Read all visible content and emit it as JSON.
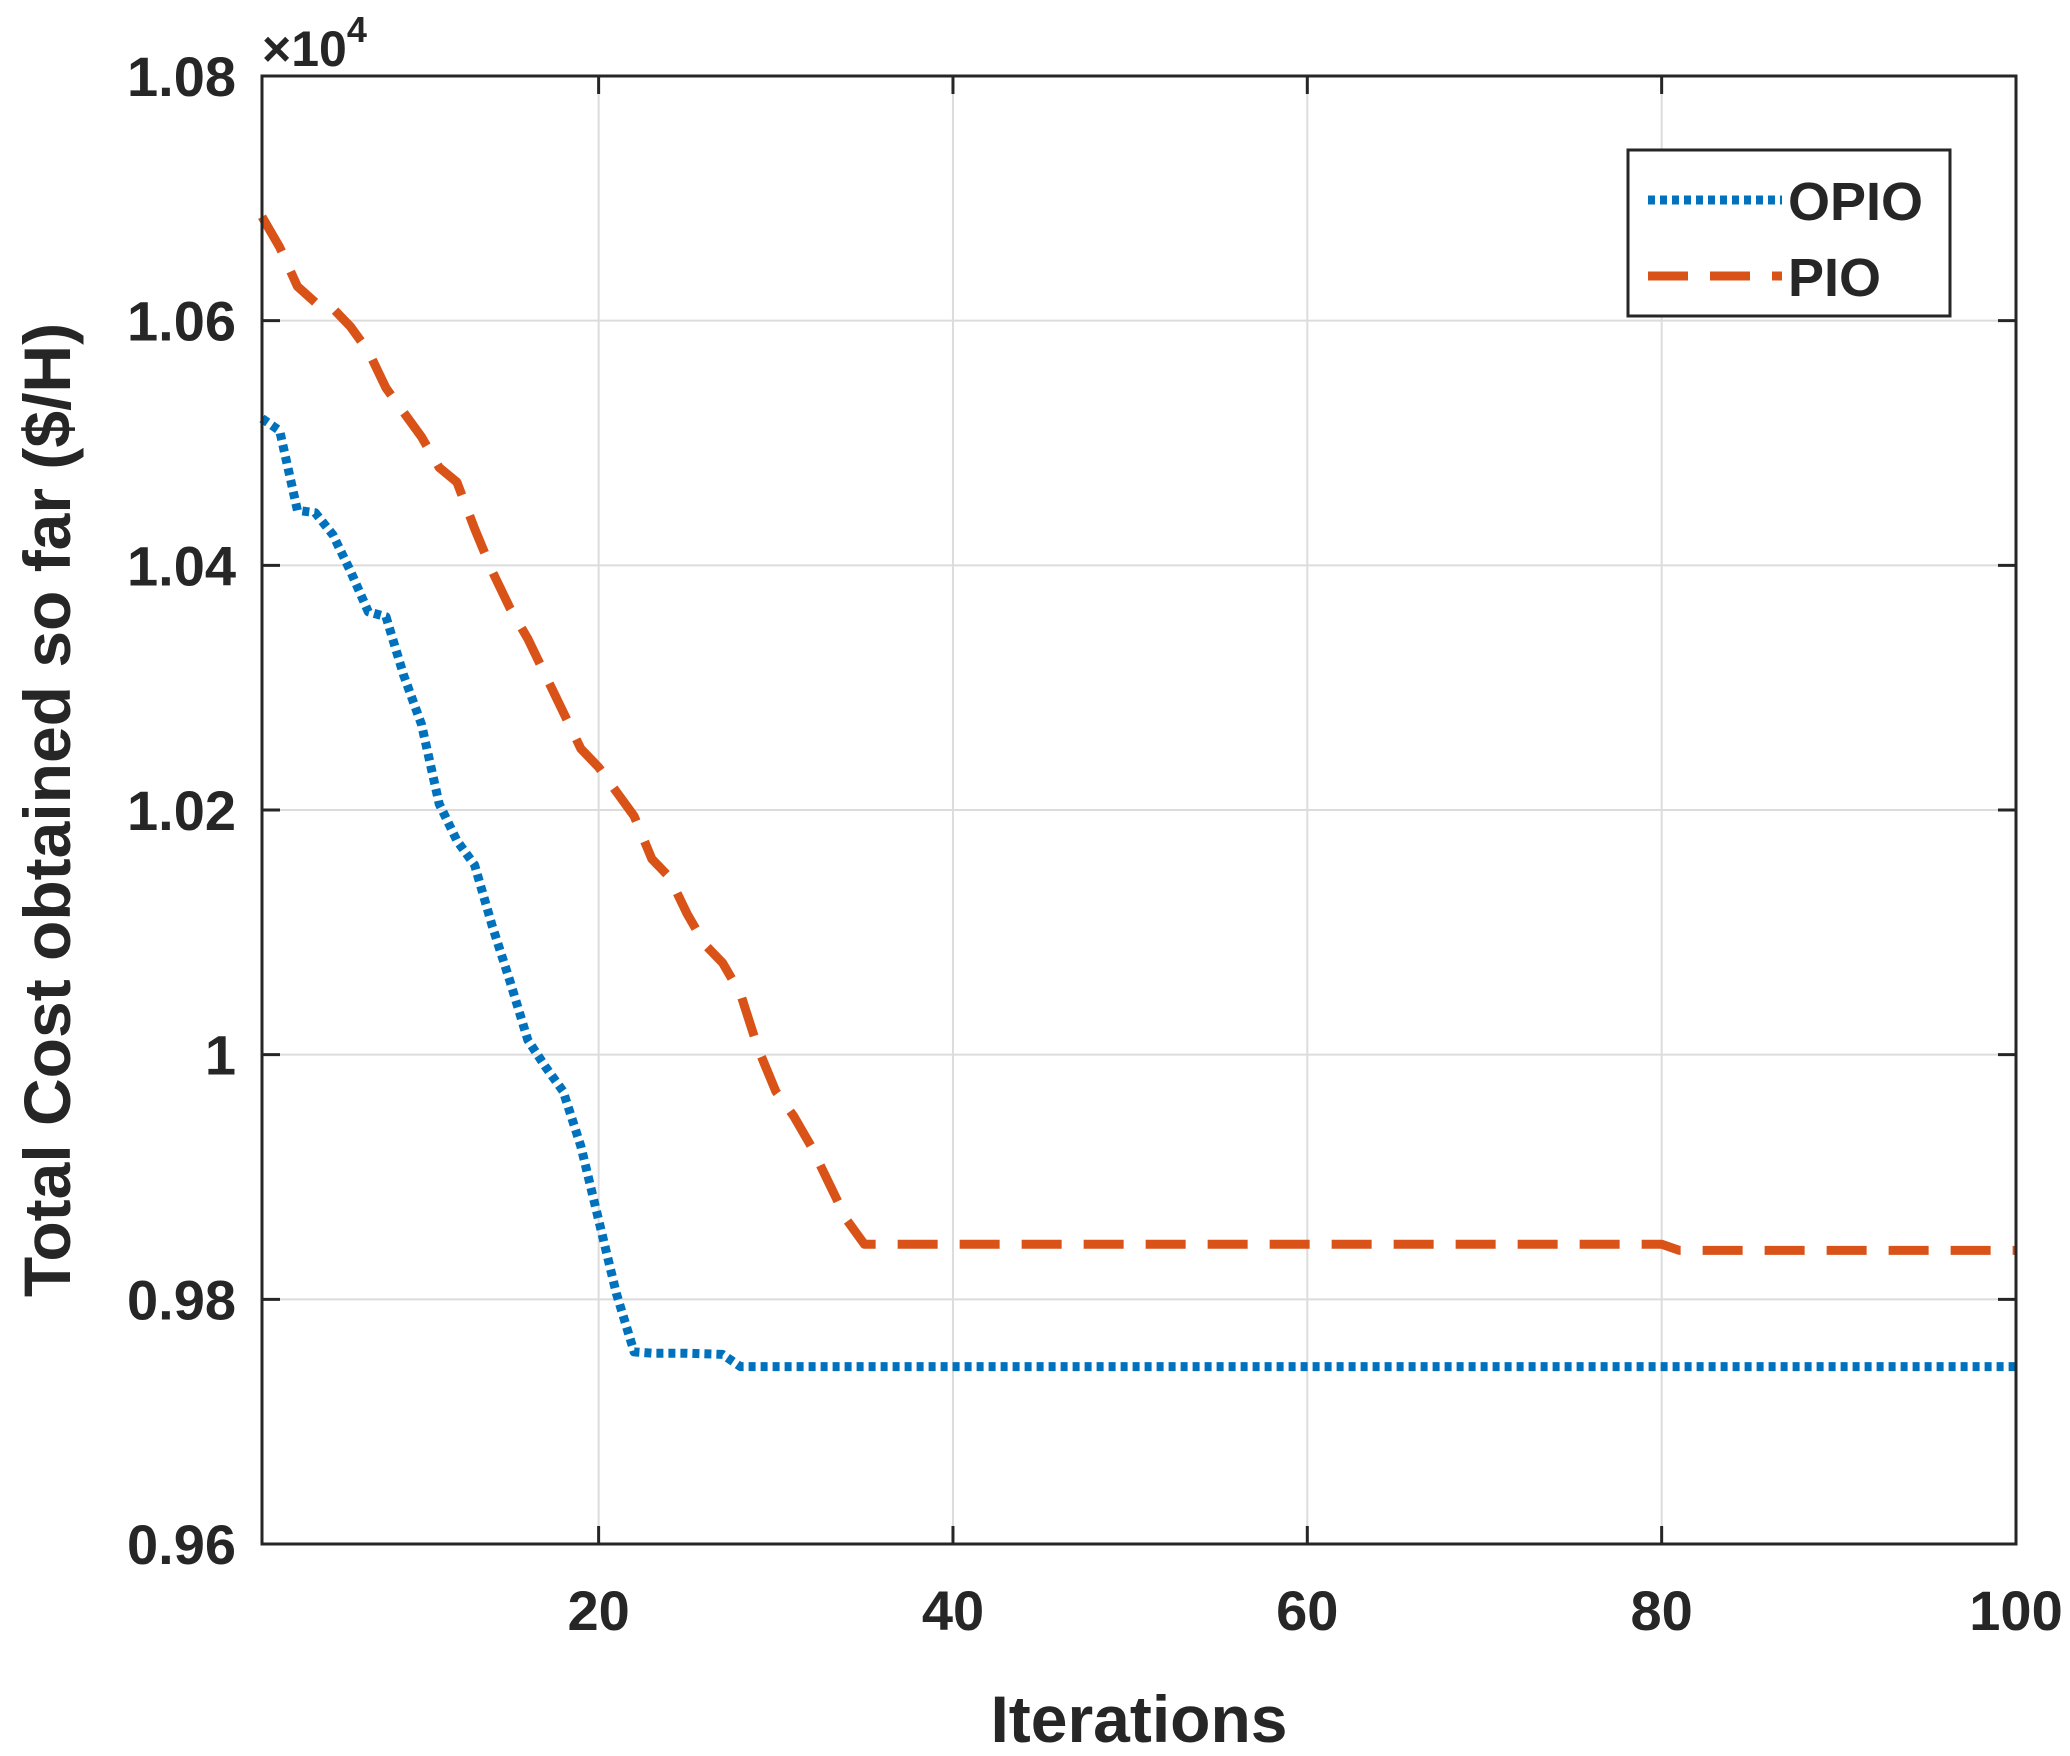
{
  "chart_data": {
    "type": "line",
    "title": "",
    "xlabel": "Iterations",
    "ylabel": "Total Cost obtained so far ($/H)",
    "y_exponent_label": "×10",
    "y_exponent_power": "4",
    "xlim": [
      1,
      100
    ],
    "ylim": [
      0.96,
      1.08
    ],
    "x_ticks": [
      20,
      40,
      60,
      80,
      100
    ],
    "y_ticks": [
      0.96,
      0.98,
      1.0,
      1.02,
      1.04,
      1.06,
      1.08
    ],
    "x_tick_labels": [
      "20",
      "40",
      "60",
      "80",
      "100"
    ],
    "y_tick_labels": [
      "0.96",
      "0.98",
      "1",
      "1.02",
      "1.04",
      "1.06",
      "1.08"
    ],
    "grid": true,
    "legend_position": "top-right",
    "series": [
      {
        "name": "OPIO",
        "color": "#0072BD",
        "style": "dotted",
        "points": [
          [
            1,
            1.052
          ],
          [
            2,
            1.051
          ],
          [
            3,
            1.0445
          ],
          [
            4,
            1.0443
          ],
          [
            5,
            1.0425
          ],
          [
            6,
            1.0395
          ],
          [
            7,
            1.0362
          ],
          [
            8,
            1.0358
          ],
          [
            9,
            1.031
          ],
          [
            10,
            1.027
          ],
          [
            11,
            1.0205
          ],
          [
            12,
            1.0175
          ],
          [
            13,
            1.0155
          ],
          [
            14,
            1.0105
          ],
          [
            15,
            1.006
          ],
          [
            16,
            1.0012
          ],
          [
            17,
            0.999
          ],
          [
            18,
            0.997
          ],
          [
            19,
            0.9925
          ],
          [
            20,
            0.9865
          ],
          [
            21,
            0.9805
          ],
          [
            22,
            0.9757
          ],
          [
            23,
            0.9756
          ],
          [
            25,
            0.9756
          ],
          [
            27,
            0.9755
          ],
          [
            28,
            0.9745
          ],
          [
            35,
            0.9745
          ],
          [
            60,
            0.9745
          ],
          [
            80,
            0.9745
          ],
          [
            100,
            0.9745
          ]
        ]
      },
      {
        "name": "PIO",
        "color": "#D95319",
        "style": "dashed",
        "points": [
          [
            1,
            1.0685
          ],
          [
            2,
            1.066
          ],
          [
            3,
            1.0628
          ],
          [
            4,
            1.0615
          ],
          [
            5,
            1.061
          ],
          [
            6,
            1.0595
          ],
          [
            7,
            1.0575
          ],
          [
            8,
            1.0545
          ],
          [
            9,
            1.0525
          ],
          [
            10,
            1.0505
          ],
          [
            11,
            1.048
          ],
          [
            12,
            1.0468
          ],
          [
            13,
            1.043
          ],
          [
            14,
            1.0395
          ],
          [
            15,
            1.0365
          ],
          [
            16,
            1.034
          ],
          [
            17,
            1.031
          ],
          [
            18,
            1.028
          ],
          [
            19,
            1.025
          ],
          [
            20,
            1.0235
          ],
          [
            21,
            1.0215
          ],
          [
            22,
            1.0195
          ],
          [
            23,
            1.016
          ],
          [
            24,
            1.0145
          ],
          [
            25,
            1.0115
          ],
          [
            26,
            1.009
          ],
          [
            27,
            1.0075
          ],
          [
            28,
            1.005
          ],
          [
            29,
            1.0005
          ],
          [
            30,
            0.997
          ],
          [
            31,
            0.995
          ],
          [
            32,
            0.9925
          ],
          [
            33,
            0.9895
          ],
          [
            34,
            0.9865
          ],
          [
            35,
            0.9845
          ],
          [
            40,
            0.9845
          ],
          [
            60,
            0.9845
          ],
          [
            80,
            0.9845
          ],
          [
            81,
            0.984
          ],
          [
            100,
            0.984
          ]
        ]
      }
    ]
  }
}
